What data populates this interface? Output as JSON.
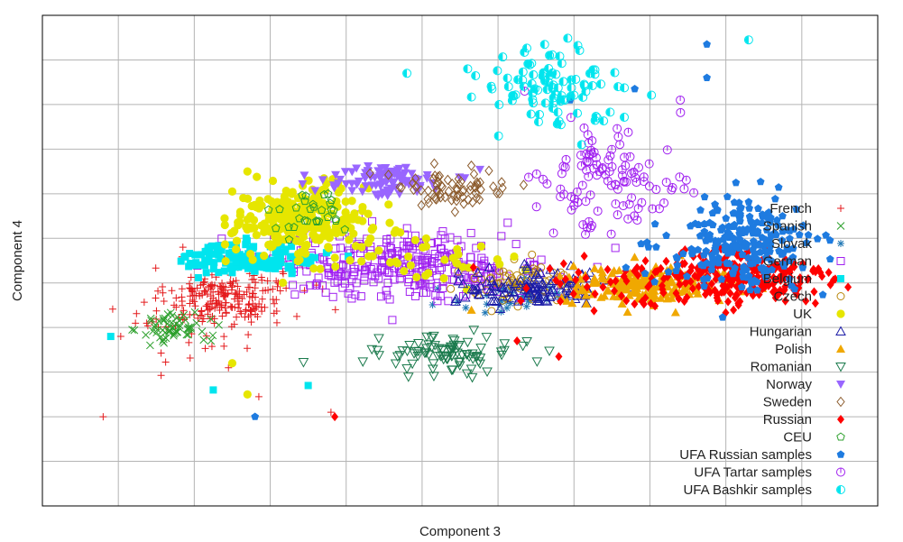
{
  "chart_data": {
    "type": "scatter",
    "title": "",
    "xlabel": "Component 3",
    "ylabel": "Component 4",
    "xlim": [
      -11,
      11
    ],
    "ylim": [
      -11,
      11
    ],
    "grid": true,
    "tick_labels_shown": false,
    "legend_position": "right",
    "series": [
      {
        "name": "French",
        "marker": "plus",
        "color": "#e41a1c",
        "clusters": [
          {
            "cx": -6.2,
            "cy": -1.6,
            "sx": 0.75,
            "sy": 0.65,
            "n": 190
          },
          {
            "cx": -7.2,
            "cy": -2.8,
            "sx": 0.9,
            "sy": 1.1,
            "n": 40
          },
          {
            "cx": -4.6,
            "cy": -1.2,
            "sx": 0.9,
            "sy": 0.9,
            "n": 15
          }
        ],
        "outliers": [
          [
            -9.4,
            -7.0
          ],
          [
            -6.1,
            -4.8
          ],
          [
            -7.3,
            0.6
          ],
          [
            -3.4,
            -6.8
          ],
          [
            -4.3,
            -2.5
          ],
          [
            -5.3,
            -6.1
          ]
        ]
      },
      {
        "name": "Spanish",
        "marker": "x",
        "color": "#2ca02c",
        "clusters": [
          {
            "cx": -7.5,
            "cy": -3.0,
            "sx": 0.45,
            "sy": 0.35,
            "n": 60
          }
        ],
        "outliers": []
      },
      {
        "name": "Slovak",
        "marker": "star",
        "color": "#1f77b4",
        "clusters": [
          {
            "cx": 1.6,
            "cy": -1.6,
            "sx": 0.9,
            "sy": 0.45,
            "n": 45
          }
        ],
        "outliers": []
      },
      {
        "name": "German",
        "marker": "square",
        "color": "#a020f0",
        "clusters": [
          {
            "cx": -1.4,
            "cy": -0.2,
            "sx": 1.9,
            "sy": 0.75,
            "n": 320
          }
        ],
        "outliers": []
      },
      {
        "name": "Belgium",
        "marker": "square-filled",
        "color": "#00e5ee",
        "clusters": [
          {
            "cx": -5.5,
            "cy": 0.1,
            "sx": 0.9,
            "sy": 0.35,
            "n": 140
          }
        ],
        "outliers": [
          [
            -9.2,
            -3.4
          ],
          [
            -4.0,
            -5.6
          ],
          [
            -6.5,
            -5.8
          ]
        ]
      },
      {
        "name": "Czech",
        "marker": "circle",
        "color": "#b8860b",
        "clusters": [
          {
            "cx": 1.6,
            "cy": -1.0,
            "sx": 0.8,
            "sy": 0.45,
            "n": 70
          }
        ],
        "outliers": []
      },
      {
        "name": "UK",
        "marker": "circle-filled",
        "color": "#e6e600",
        "clusters": [
          {
            "cx": -4.2,
            "cy": 1.8,
            "sx": 0.9,
            "sy": 0.8,
            "n": 260
          },
          {
            "cx": -1.2,
            "cy": 0.2,
            "sx": 1.4,
            "sy": 0.7,
            "n": 40
          }
        ],
        "outliers": [
          [
            -6.0,
            -4.6
          ],
          [
            -5.6,
            -6.0
          ],
          [
            -5.6,
            4.0
          ],
          [
            -6.0,
            3.1
          ]
        ]
      },
      {
        "name": "Hungarian",
        "marker": "triangle",
        "color": "#1a1aa6",
        "clusters": [
          {
            "cx": 1.9,
            "cy": -1.2,
            "sx": 1.0,
            "sy": 0.4,
            "n": 110
          }
        ],
        "outliers": []
      },
      {
        "name": "Polish",
        "marker": "triangle-filled",
        "color": "#f0a800",
        "clusters": [
          {
            "cx": 5.0,
            "cy": -1.1,
            "sx": 1.2,
            "sy": 0.4,
            "n": 180
          }
        ],
        "outliers": []
      },
      {
        "name": "Romanian",
        "marker": "triangle-down",
        "color": "#1a7a4c",
        "clusters": [
          {
            "cx": -0.4,
            "cy": -4.2,
            "sx": 0.9,
            "sy": 0.4,
            "n": 90
          }
        ],
        "outliers": []
      },
      {
        "name": "Norway",
        "marker": "triangle-down-filled",
        "color": "#9966ff",
        "clusters": [
          {
            "cx": -2.0,
            "cy": 3.6,
            "sx": 0.8,
            "sy": 0.35,
            "n": 90
          }
        ],
        "outliers": []
      },
      {
        "name": "Sweden",
        "marker": "diamond",
        "color": "#8b5a2b",
        "clusters": [
          {
            "cx": -0.2,
            "cy": 3.2,
            "sx": 0.8,
            "sy": 0.45,
            "n": 70
          }
        ],
        "outliers": []
      },
      {
        "name": "Russian",
        "marker": "diamond-filled",
        "color": "#ff0000",
        "clusters": [
          {
            "cx": 7.4,
            "cy": -0.8,
            "sx": 1.2,
            "sy": 0.7,
            "n": 230
          },
          {
            "cx": 3.6,
            "cy": -1.1,
            "sx": 1.2,
            "sy": 0.6,
            "n": 45
          }
        ],
        "outliers": [
          [
            -3.3,
            -7.0
          ],
          [
            1.5,
            -3.6
          ],
          [
            2.6,
            -4.3
          ]
        ]
      },
      {
        "name": "CEU",
        "marker": "pentagon-outline",
        "color": "#2ca02c",
        "clusters": [
          {
            "cx": -3.8,
            "cy": 2.1,
            "sx": 0.5,
            "sy": 0.5,
            "n": 30
          }
        ],
        "outliers": []
      },
      {
        "name": "UFA Russian samples",
        "marker": "pentagon",
        "color": "#1e7be0",
        "clusters": [
          {
            "cx": 7.4,
            "cy": 0.7,
            "sx": 1.0,
            "sy": 1.0,
            "n": 230
          }
        ],
        "outliers": [
          [
            -5.4,
            -7.0
          ],
          [
            6.5,
            9.7
          ],
          [
            6.5,
            8.2
          ],
          [
            4.6,
            7.7
          ],
          [
            2.9,
            7.2
          ]
        ]
      },
      {
        "name": "UFA Tartar samples",
        "marker": "circle-target",
        "color": "#a020f0",
        "clusters": [
          {
            "cx": 4.1,
            "cy": 3.6,
            "sx": 0.9,
            "sy": 1.1,
            "n": 110
          }
        ],
        "outliers": [
          [
            5.8,
            7.2
          ],
          [
            1.7,
            7.6
          ]
        ]
      },
      {
        "name": "UFA Bashkir samples",
        "marker": "circle-half",
        "color": "#00e5ee",
        "clusters": [
          {
            "cx": 2.2,
            "cy": 7.8,
            "sx": 0.9,
            "sy": 0.9,
            "n": 95
          }
        ],
        "outliers": [
          [
            7.6,
            9.9
          ],
          [
            -1.4,
            8.4
          ],
          [
            0.2,
            8.6
          ],
          [
            3.2,
            5.2
          ]
        ]
      }
    ]
  }
}
